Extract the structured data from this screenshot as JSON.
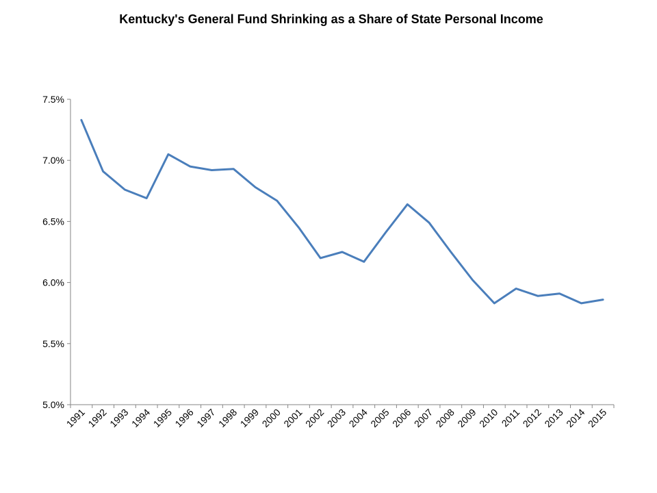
{
  "chart_data": {
    "type": "line",
    "title": "Kentucky's General Fund Shrinking as a Share of State Personal Income",
    "xlabel": "",
    "ylabel": "",
    "ylim": [
      5.0,
      7.5
    ],
    "y_ticks": [
      5.0,
      5.5,
      6.0,
      6.5,
      7.0,
      7.5
    ],
    "y_tick_labels": [
      "5.0%",
      "5.5%",
      "6.0%",
      "6.5%",
      "7.0%",
      "7.5%"
    ],
    "categories": [
      "1991",
      "1992",
      "1993",
      "1994",
      "1995",
      "1996",
      "1997",
      "1998",
      "1999",
      "2000",
      "2001",
      "2002",
      "2003",
      "2004",
      "2005",
      "2006",
      "2007",
      "2008",
      "2009",
      "2010",
      "2011",
      "2012",
      "2013",
      "2014",
      "2015"
    ],
    "series": [
      {
        "values": [
          7.33,
          6.91,
          6.76,
          6.69,
          7.05,
          6.95,
          6.92,
          6.93,
          6.78,
          6.67,
          6.45,
          6.2,
          6.25,
          6.17,
          6.41,
          6.64,
          6.49,
          6.25,
          6.02,
          5.83,
          5.95,
          5.89,
          5.91,
          5.83,
          5.86
        ],
        "color": "#4a7ebb"
      }
    ],
    "grid": false,
    "legend": "none"
  }
}
